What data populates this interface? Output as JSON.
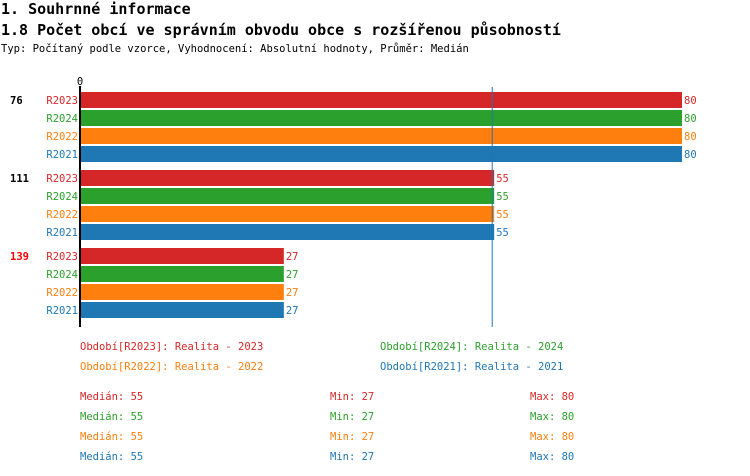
{
  "header": {
    "section_title": "1. Souhrnné informace",
    "chart_title": "1.8 Počet obcí ve správním obvodu obce s rozšířenou působností",
    "subtitle": "Typ: Počítaný podle vzorce, Vyhodnocení: Absolutní hodnoty, Průměr: Medián"
  },
  "chart_data": {
    "type": "bar",
    "orientation": "horizontal",
    "axis_zero_label": "0",
    "xlim": [
      0,
      80
    ],
    "median_line": 55,
    "colors": {
      "R2023": "#d62728",
      "R2024": "#2ca02c",
      "R2022": "#ff7f0e",
      "R2021": "#1f77b4"
    },
    "groups": [
      {
        "label": "76",
        "highlight": false,
        "bars": [
          {
            "series": "R2023",
            "value": 80
          },
          {
            "series": "R2024",
            "value": 80
          },
          {
            "series": "R2022",
            "value": 80
          },
          {
            "series": "R2021",
            "value": 80
          }
        ]
      },
      {
        "label": "111",
        "highlight": false,
        "bars": [
          {
            "series": "R2023",
            "value": 55
          },
          {
            "series": "R2024",
            "value": 55
          },
          {
            "series": "R2022",
            "value": 55
          },
          {
            "series": "R2021",
            "value": 55
          }
        ]
      },
      {
        "label": "139",
        "highlight": true,
        "bars": [
          {
            "series": "R2023",
            "value": 27
          },
          {
            "series": "R2024",
            "value": 27
          },
          {
            "series": "R2022",
            "value": 27
          },
          {
            "series": "R2021",
            "value": 27
          }
        ]
      }
    ],
    "legend": [
      {
        "text": "Období[R2023]: Realita - 2023",
        "color": "#d62728"
      },
      {
        "text": "Období[R2024]: Realita - 2024",
        "color": "#2ca02c"
      },
      {
        "text": "Období[R2022]: Realita - 2022",
        "color": "#ff7f0e"
      },
      {
        "text": "Období[R2021]: Realita - 2021",
        "color": "#1f77b4"
      }
    ],
    "stats": [
      {
        "median": "Medián: 55",
        "min": "Min: 27",
        "max": "Max: 80",
        "color": "#d62728"
      },
      {
        "median": "Medián: 55",
        "min": "Min: 27",
        "max": "Max: 80",
        "color": "#2ca02c"
      },
      {
        "median": "Medián: 55",
        "min": "Min: 27",
        "max": "Max: 80",
        "color": "#ff7f0e"
      },
      {
        "median": "Medián: 55",
        "min": "Min: 27",
        "max": "Max: 80",
        "color": "#1f77b4"
      }
    ]
  }
}
